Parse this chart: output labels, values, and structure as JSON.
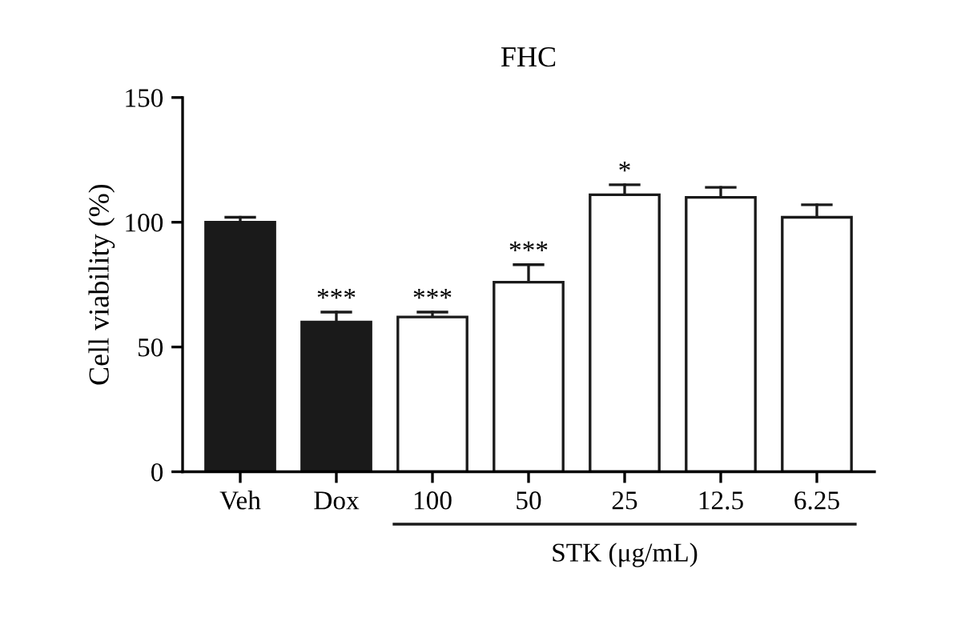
{
  "chart_data": {
    "type": "bar",
    "title": "FHC",
    "ylabel": "Cell viability (%)",
    "categories": [
      "Veh",
      "Dox",
      "100",
      "50",
      "25",
      "12.5",
      "6.25"
    ],
    "values": [
      100,
      60,
      62,
      76,
      111,
      110,
      102
    ],
    "colors": [
      "#1a1a1a",
      "#1a1a1a",
      "#ffffff",
      "#ffffff",
      "#ffffff",
      "#ffffff",
      "#ffffff"
    ],
    "errors": [
      [
        100,
        102
      ],
      [
        60,
        64
      ],
      [
        62,
        64
      ],
      [
        76,
        83
      ],
      [
        111,
        115
      ],
      [
        110,
        114
      ],
      [
        102,
        107
      ]
    ],
    "ylim": [
      0,
      150
    ],
    "yticks": [
      0,
      50,
      100,
      150
    ],
    "grid": false,
    "annotations": [
      {
        "text": "***",
        "x": "Dox",
        "y": 64
      },
      {
        "text": "***",
        "x": "100",
        "y": 64
      },
      {
        "text": "***",
        "x": "50",
        "y": 83
      },
      {
        "text": "*",
        "x": "25",
        "y": 115
      },
      "STK (μg/mL)"
    ]
  }
}
